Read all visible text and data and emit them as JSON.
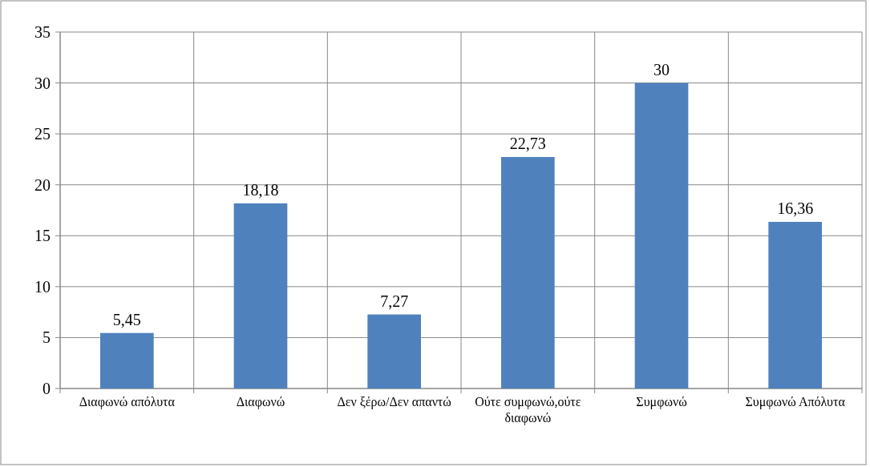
{
  "chart_data": {
    "type": "bar",
    "categories": [
      "Διαφωνώ απόλυτα",
      "Διαφωνώ",
      "Δεν ξέρω/Δεν απαντώ",
      "Ούτε συμφωνώ,ούτε διαφωνώ",
      "Συμφωνώ",
      "Συμφωνώ Απόλυτα"
    ],
    "values": [
      5.45,
      18.18,
      7.27,
      22.73,
      30,
      16.36
    ],
    "value_labels": [
      "5,45",
      "18,18",
      "7,27",
      "22,73",
      "30",
      "16,36"
    ],
    "color": "#4f81bd",
    "ylim": [
      0,
      35
    ],
    "yticks": [
      0,
      5,
      10,
      15,
      20,
      25,
      30,
      35
    ],
    "grid": true
  }
}
